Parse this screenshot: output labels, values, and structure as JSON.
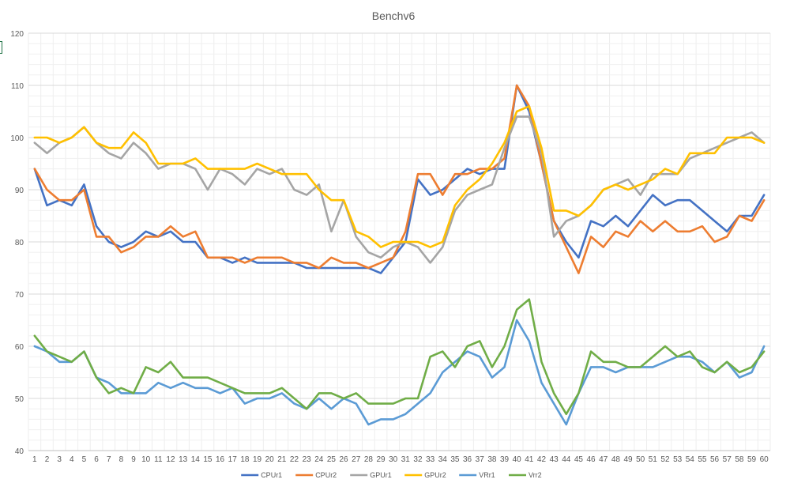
{
  "chart_data": {
    "type": "line",
    "title": "Benchv6",
    "xlabel": "",
    "ylabel": "",
    "ylim": [
      40,
      120
    ],
    "ytick_step": 10,
    "grid": true,
    "legend_position": "bottom",
    "categories": [
      "1",
      "2",
      "3",
      "4",
      "5",
      "6",
      "7",
      "8",
      "9",
      "10",
      "11",
      "12",
      "13",
      "14",
      "15",
      "16",
      "17",
      "18",
      "19",
      "20",
      "21",
      "22",
      "23",
      "24",
      "25",
      "26",
      "27",
      "28",
      "29",
      "30",
      "31",
      "32",
      "33",
      "34",
      "35",
      "36",
      "37",
      "38",
      "39",
      "40",
      "41",
      "42",
      "43",
      "44",
      "45",
      "46",
      "47",
      "48",
      "49",
      "50",
      "51",
      "52",
      "53",
      "54",
      "55",
      "56",
      "57",
      "58",
      "59",
      "60"
    ],
    "series": [
      {
        "name": "CPUr1",
        "color": "#4472C4",
        "values": [
          94,
          87,
          88,
          87,
          91,
          83,
          80,
          79,
          80,
          82,
          81,
          82,
          80,
          80,
          77,
          77,
          76,
          77,
          76,
          76,
          76,
          76,
          75,
          75,
          75,
          75,
          75,
          75,
          74,
          77,
          80,
          92,
          89,
          90,
          92,
          94,
          93,
          94,
          94,
          110,
          105,
          95,
          84,
          80,
          77,
          84,
          83,
          85,
          83,
          86,
          89,
          87,
          88,
          88,
          86,
          84,
          82,
          85,
          85,
          89
        ]
      },
      {
        "name": "CPUr2",
        "color": "#ED7D31",
        "values": [
          94,
          90,
          88,
          88,
          90,
          81,
          81,
          78,
          79,
          81,
          81,
          83,
          81,
          82,
          77,
          77,
          77,
          76,
          77,
          77,
          77,
          76,
          76,
          75,
          77,
          76,
          76,
          75,
          76,
          77,
          82,
          93,
          93,
          89,
          93,
          93,
          94,
          94,
          96,
          110,
          106,
          95,
          84,
          79,
          74,
          81,
          79,
          82,
          81,
          84,
          82,
          84,
          82,
          82,
          83,
          80,
          81,
          85,
          84,
          88
        ]
      },
      {
        "name": "GPUr1",
        "color": "#A5A5A5",
        "values": [
          99,
          97,
          99,
          100,
          102,
          99,
          97,
          96,
          99,
          97,
          94,
          95,
          95,
          94,
          90,
          94,
          93,
          91,
          94,
          93,
          94,
          90,
          89,
          91,
          82,
          88,
          81,
          78,
          77,
          79,
          80,
          79,
          76,
          79,
          86,
          89,
          90,
          91,
          98,
          104,
          104,
          97,
          81,
          84,
          85,
          87,
          90,
          91,
          92,
          89,
          93,
          93,
          93,
          96,
          97,
          98,
          99,
          100,
          101,
          99
        ]
      },
      {
        "name": "GPUr2",
        "color": "#FFC000",
        "values": [
          100,
          100,
          99,
          100,
          102,
          99,
          98,
          98,
          101,
          99,
          95,
          95,
          95,
          96,
          94,
          94,
          94,
          94,
          95,
          94,
          93,
          93,
          93,
          90,
          88,
          88,
          82,
          81,
          79,
          80,
          80,
          80,
          79,
          80,
          87,
          90,
          92,
          95,
          99,
          105,
          106,
          98,
          86,
          86,
          85,
          87,
          90,
          91,
          90,
          91,
          92,
          94,
          93,
          97,
          97,
          97,
          100,
          100,
          100,
          99
        ]
      },
      {
        "name": "VRr1",
        "color": "#5B9BD5",
        "values": [
          60,
          59,
          57,
          57,
          59,
          54,
          53,
          51,
          51,
          51,
          53,
          52,
          53,
          52,
          52,
          51,
          52,
          49,
          50,
          50,
          51,
          49,
          48,
          50,
          48,
          50,
          49,
          45,
          46,
          46,
          47,
          49,
          51,
          55,
          57,
          59,
          58,
          54,
          56,
          65,
          61,
          53,
          49,
          45,
          51,
          56,
          56,
          55,
          56,
          56,
          56,
          57,
          58,
          58,
          57,
          55,
          57,
          54,
          55,
          60
        ]
      },
      {
        "name": "Vrr2",
        "color": "#70AD47",
        "values": [
          62,
          59,
          58,
          57,
          59,
          54,
          51,
          52,
          51,
          56,
          55,
          57,
          54,
          54,
          54,
          53,
          52,
          51,
          51,
          51,
          52,
          50,
          48,
          51,
          51,
          50,
          51,
          49,
          49,
          49,
          50,
          50,
          58,
          59,
          56,
          60,
          61,
          56,
          60,
          67,
          69,
          57,
          51,
          47,
          51,
          59,
          57,
          57,
          56,
          56,
          58,
          60,
          58,
          59,
          56,
          55,
          57,
          55,
          56,
          59
        ]
      }
    ]
  }
}
